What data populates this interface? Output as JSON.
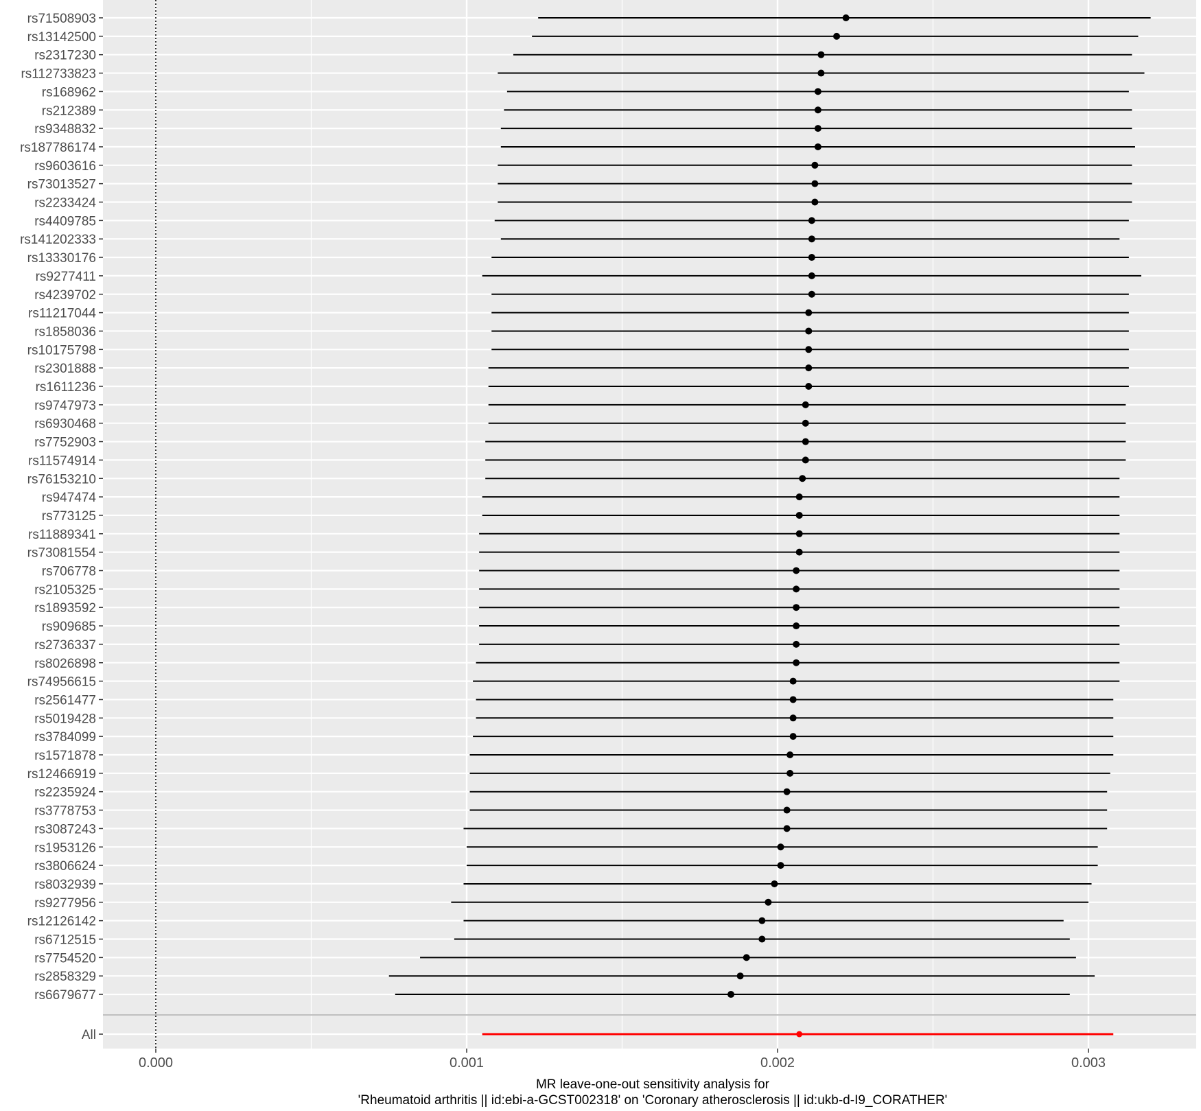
{
  "chart_data": {
    "type": "forest",
    "title": "",
    "xlabel_line1": "MR leave-one-out sensitivity analysis for",
    "xlabel_line2": "'Rheumatoid arthritis || id:ebi-a-GCST002318' on 'Coronary atherosclerosis || id:ukb-d-I9_CORATHER'",
    "ylabel": "",
    "xlim": [
      -0.00018,
      0.00335
    ],
    "x_ticks": [
      0.0,
      0.001,
      0.002,
      0.003
    ],
    "x_tick_labels": [
      "0.000",
      "0.001",
      "0.002",
      "0.003"
    ],
    "reference_line_x": 0,
    "grid": true,
    "legend": "none",
    "colors": {
      "panel_bg": "#ebebeb",
      "grid": "#ffffff",
      "point": "#000000",
      "overall": "#ff0000",
      "separator": "#bfbfbf"
    },
    "snps": [
      {
        "label": "rs71508903",
        "b": 0.00222,
        "lo": 0.00123,
        "hi": 0.0032
      },
      {
        "label": "rs13142500",
        "b": 0.00219,
        "lo": 0.00121,
        "hi": 0.00316
      },
      {
        "label": "rs2317230",
        "b": 0.00214,
        "lo": 0.00115,
        "hi": 0.00314
      },
      {
        "label": "rs112733823",
        "b": 0.00214,
        "lo": 0.0011,
        "hi": 0.00318
      },
      {
        "label": "rs168962",
        "b": 0.00213,
        "lo": 0.00113,
        "hi": 0.00313
      },
      {
        "label": "rs212389",
        "b": 0.00213,
        "lo": 0.00112,
        "hi": 0.00314
      },
      {
        "label": "rs9348832",
        "b": 0.00213,
        "lo": 0.00111,
        "hi": 0.00314
      },
      {
        "label": "rs187786174",
        "b": 0.00213,
        "lo": 0.00111,
        "hi": 0.00315
      },
      {
        "label": "rs9603616",
        "b": 0.00212,
        "lo": 0.0011,
        "hi": 0.00314
      },
      {
        "label": "rs73013527",
        "b": 0.00212,
        "lo": 0.0011,
        "hi": 0.00314
      },
      {
        "label": "rs2233424",
        "b": 0.00212,
        "lo": 0.0011,
        "hi": 0.00314
      },
      {
        "label": "rs4409785",
        "b": 0.00211,
        "lo": 0.00109,
        "hi": 0.00313
      },
      {
        "label": "rs141202333",
        "b": 0.00211,
        "lo": 0.00111,
        "hi": 0.0031
      },
      {
        "label": "rs13330176",
        "b": 0.00211,
        "lo": 0.00108,
        "hi": 0.00313
      },
      {
        "label": "rs9277411",
        "b": 0.00211,
        "lo": 0.00105,
        "hi": 0.00317
      },
      {
        "label": "rs4239702",
        "b": 0.00211,
        "lo": 0.00108,
        "hi": 0.00313
      },
      {
        "label": "rs11217044",
        "b": 0.0021,
        "lo": 0.00108,
        "hi": 0.00313
      },
      {
        "label": "rs1858036",
        "b": 0.0021,
        "lo": 0.00108,
        "hi": 0.00313
      },
      {
        "label": "rs10175798",
        "b": 0.0021,
        "lo": 0.00108,
        "hi": 0.00313
      },
      {
        "label": "rs2301888",
        "b": 0.0021,
        "lo": 0.00107,
        "hi": 0.00313
      },
      {
        "label": "rs1611236",
        "b": 0.0021,
        "lo": 0.00107,
        "hi": 0.00313
      },
      {
        "label": "rs9747973",
        "b": 0.00209,
        "lo": 0.00107,
        "hi": 0.00312
      },
      {
        "label": "rs6930468",
        "b": 0.00209,
        "lo": 0.00107,
        "hi": 0.00312
      },
      {
        "label": "rs7752903",
        "b": 0.00209,
        "lo": 0.00106,
        "hi": 0.00312
      },
      {
        "label": "rs11574914",
        "b": 0.00209,
        "lo": 0.00106,
        "hi": 0.00312
      },
      {
        "label": "rs76153210",
        "b": 0.00208,
        "lo": 0.00106,
        "hi": 0.0031
      },
      {
        "label": "rs947474",
        "b": 0.00207,
        "lo": 0.00105,
        "hi": 0.0031
      },
      {
        "label": "rs773125",
        "b": 0.00207,
        "lo": 0.00105,
        "hi": 0.0031
      },
      {
        "label": "rs11889341",
        "b": 0.00207,
        "lo": 0.00104,
        "hi": 0.0031
      },
      {
        "label": "rs73081554",
        "b": 0.00207,
        "lo": 0.00104,
        "hi": 0.0031
      },
      {
        "label": "rs706778",
        "b": 0.00206,
        "lo": 0.00104,
        "hi": 0.0031
      },
      {
        "label": "rs2105325",
        "b": 0.00206,
        "lo": 0.00104,
        "hi": 0.0031
      },
      {
        "label": "rs1893592",
        "b": 0.00206,
        "lo": 0.00104,
        "hi": 0.0031
      },
      {
        "label": "rs909685",
        "b": 0.00206,
        "lo": 0.00104,
        "hi": 0.0031
      },
      {
        "label": "rs2736337",
        "b": 0.00206,
        "lo": 0.00104,
        "hi": 0.0031
      },
      {
        "label": "rs8026898",
        "b": 0.00206,
        "lo": 0.00103,
        "hi": 0.0031
      },
      {
        "label": "rs74956615",
        "b": 0.00205,
        "lo": 0.00102,
        "hi": 0.0031
      },
      {
        "label": "rs2561477",
        "b": 0.00205,
        "lo": 0.00103,
        "hi": 0.00308
      },
      {
        "label": "rs5019428",
        "b": 0.00205,
        "lo": 0.00103,
        "hi": 0.00308
      },
      {
        "label": "rs3784099",
        "b": 0.00205,
        "lo": 0.00102,
        "hi": 0.00308
      },
      {
        "label": "rs1571878",
        "b": 0.00204,
        "lo": 0.00101,
        "hi": 0.00308
      },
      {
        "label": "rs12466919",
        "b": 0.00204,
        "lo": 0.00101,
        "hi": 0.00307
      },
      {
        "label": "rs2235924",
        "b": 0.00203,
        "lo": 0.00101,
        "hi": 0.00306
      },
      {
        "label": "rs3778753",
        "b": 0.00203,
        "lo": 0.00101,
        "hi": 0.00306
      },
      {
        "label": "rs3087243",
        "b": 0.00203,
        "lo": 0.00099,
        "hi": 0.00306
      },
      {
        "label": "rs1953126",
        "b": 0.00201,
        "lo": 0.001,
        "hi": 0.00303
      },
      {
        "label": "rs3806624",
        "b": 0.00201,
        "lo": 0.001,
        "hi": 0.00303
      },
      {
        "label": "rs8032939",
        "b": 0.00199,
        "lo": 0.00099,
        "hi": 0.00301
      },
      {
        "label": "rs9277956",
        "b": 0.00197,
        "lo": 0.00095,
        "hi": 0.003
      },
      {
        "label": "rs12126142",
        "b": 0.00195,
        "lo": 0.00099,
        "hi": 0.00292
      },
      {
        "label": "rs6712515",
        "b": 0.00195,
        "lo": 0.00096,
        "hi": 0.00294
      },
      {
        "label": "rs7754520",
        "b": 0.0019,
        "lo": 0.00085,
        "hi": 0.00296
      },
      {
        "label": "rs2858329",
        "b": 0.00188,
        "lo": 0.00075,
        "hi": 0.00302
      },
      {
        "label": "rs6679677",
        "b": 0.00185,
        "lo": 0.00077,
        "hi": 0.00294
      }
    ],
    "overall": {
      "label": "All",
      "b": 0.00207,
      "lo": 0.00105,
      "hi": 0.00308
    }
  }
}
